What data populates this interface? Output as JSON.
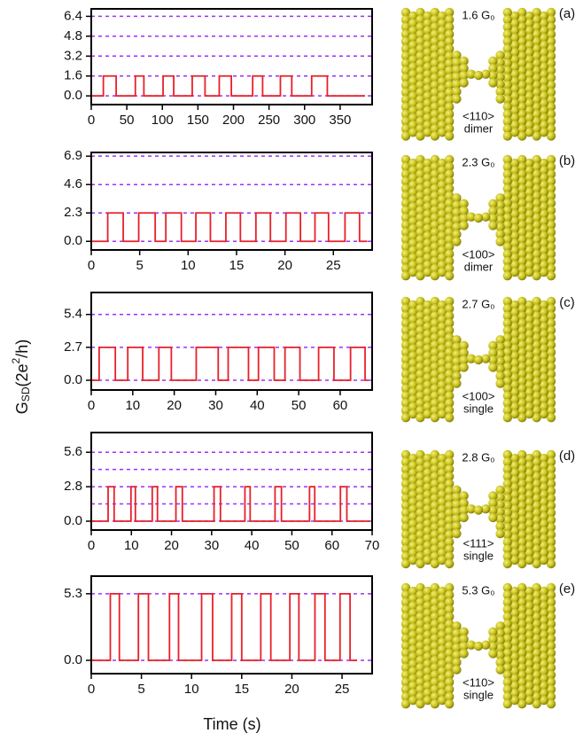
{
  "xlabel": "Time (s)",
  "ylabel": [
    "G",
    "SD",
    "(2e",
    "2",
    "/h)"
  ],
  "chart_data": [
    {
      "type": "line",
      "panel_label": "(a)",
      "conductance_label": "1.6 G₀",
      "structure_label": [
        "<110>",
        "dimer"
      ],
      "color": "#e8202a",
      "grid_color": "#9b30ff",
      "xlim": [
        0,
        395
      ],
      "xticks": [
        0,
        50,
        100,
        150,
        200,
        250,
        300,
        350
      ],
      "ylim": [
        -0.7,
        7.0
      ],
      "yticks": [
        {
          "value": 0,
          "label": "0.0"
        },
        1.6,
        3.2,
        4.8,
        6.4
      ],
      "hlines": [
        0,
        1.6,
        3.2,
        4.8,
        6.4
      ],
      "x": [
        0,
        17,
        17,
        35,
        35,
        62,
        62,
        74,
        74,
        101,
        101,
        116,
        116,
        142,
        142,
        160,
        160,
        180,
        180,
        197,
        197,
        227,
        227,
        241,
        241,
        266,
        266,
        282,
        282,
        310,
        310,
        332,
        332,
        385
      ],
      "values": [
        0,
        0,
        1.6,
        1.6,
        0,
        0,
        1.6,
        1.6,
        0,
        0,
        1.6,
        1.6,
        0,
        0,
        1.6,
        1.6,
        0,
        0,
        1.6,
        1.6,
        0,
        0,
        1.6,
        1.6,
        0,
        0,
        1.6,
        1.6,
        0,
        0,
        1.6,
        1.6,
        0,
        0
      ]
    },
    {
      "type": "line",
      "panel_label": "(b)",
      "conductance_label": "2.3 G₀",
      "structure_label": [
        "<100>",
        "dimer"
      ],
      "color": "#e8202a",
      "grid_color": "#9b30ff",
      "xlim": [
        0,
        29
      ],
      "xticks": [
        0,
        5,
        10,
        15,
        20,
        25
      ],
      "ylim": [
        -0.7,
        7.2
      ],
      "yticks": [
        {
          "value": 0,
          "label": "0.0"
        },
        2.3,
        4.6,
        6.9
      ],
      "hlines": [
        0,
        2.3,
        4.6,
        6.9
      ],
      "x": [
        0,
        1.7,
        1.7,
        3.3,
        3.3,
        4.9,
        4.9,
        6.6,
        6.6,
        7.7,
        7.7,
        9.3,
        9.3,
        10.8,
        10.8,
        12.3,
        12.3,
        13.9,
        13.9,
        15.4,
        15.4,
        17,
        17,
        18.5,
        18.5,
        20.1,
        20.1,
        21.6,
        21.6,
        23.1,
        23.1,
        24.5,
        24.5,
        26.2,
        26.2,
        27.7,
        27.7,
        28.5
      ],
      "values": [
        0,
        0,
        2.3,
        2.3,
        0,
        0,
        2.3,
        2.3,
        0,
        0,
        2.3,
        2.3,
        0,
        0,
        2.3,
        2.3,
        0,
        0,
        2.3,
        2.3,
        0,
        0,
        2.3,
        2.3,
        0,
        0,
        2.3,
        2.3,
        0,
        0,
        2.3,
        2.3,
        0,
        0,
        2.3,
        2.3,
        0,
        0
      ]
    },
    {
      "type": "line",
      "panel_label": "(c)",
      "conductance_label": "2.7 G₀",
      "structure_label": [
        "<100>",
        "single"
      ],
      "color": "#e8202a",
      "grid_color": "#9b30ff",
      "xlim": [
        0,
        67.7
      ],
      "xticks": [
        0,
        10,
        20,
        30,
        40,
        50,
        60
      ],
      "ylim": [
        -0.8,
        7.2
      ],
      "yticks": [
        {
          "value": 0,
          "label": "0.0"
        },
        2.7,
        5.4
      ],
      "hlines": [
        0,
        2.7,
        5.4
      ],
      "x": [
        0,
        1.9,
        1.9,
        5.8,
        5.8,
        8.8,
        8.8,
        12.4,
        12.4,
        16.3,
        16.3,
        19.3,
        19.3,
        25.3,
        25.3,
        30.6,
        30.6,
        33,
        33,
        37.9,
        37.9,
        40.3,
        40.3,
        44.1,
        44.1,
        46.7,
        46.7,
        50.3,
        50.3,
        54.8,
        54.8,
        58.5,
        58.5,
        62.5,
        62.5,
        66,
        66,
        66.8
      ],
      "values": [
        0,
        0,
        2.7,
        2.7,
        0,
        0,
        2.7,
        2.7,
        0,
        0,
        2.7,
        2.7,
        0,
        0,
        2.7,
        2.7,
        0,
        0,
        2.7,
        2.7,
        0,
        0,
        2.7,
        2.7,
        0,
        0,
        2.7,
        2.7,
        0,
        0,
        2.7,
        2.7,
        0,
        0,
        2.7,
        2.7,
        0,
        0
      ]
    },
    {
      "type": "line",
      "panel_label": "(d)",
      "conductance_label": "2.8 G₀",
      "structure_label": [
        "<111>",
        "single"
      ],
      "color": "#e8202a",
      "grid_color": "#9b30ff",
      "xlim": [
        0,
        70
      ],
      "xticks": [
        0,
        10,
        20,
        30,
        40,
        50,
        60,
        70
      ],
      "ylim": [
        -0.72,
        7.2
      ],
      "yticks": [
        {
          "value": 0,
          "label": "0.0"
        },
        2.8,
        5.6
      ],
      "hlines": [
        0,
        1.4,
        2.8,
        4.2,
        5.6
      ],
      "x": [
        0,
        4.2,
        4.2,
        5.7,
        5.7,
        9.9,
        9.9,
        11,
        11,
        15.2,
        15.2,
        16.5,
        16.5,
        21.1,
        21.1,
        22.7,
        22.7,
        30.6,
        30.6,
        32.2,
        32.2,
        38.3,
        38.3,
        39.6,
        39.6,
        45.8,
        45.8,
        47.4,
        47.4,
        54.4,
        54.4,
        55.7,
        55.7,
        62.1,
        62.1,
        63.7,
        63.7,
        69.5
      ],
      "values": [
        0,
        0,
        2.8,
        2.8,
        0,
        0,
        2.8,
        2.8,
        0,
        0,
        2.8,
        2.8,
        0,
        0,
        2.8,
        2.8,
        0,
        0,
        2.8,
        2.8,
        0,
        0,
        2.8,
        2.8,
        0,
        0,
        2.8,
        2.8,
        0,
        0,
        2.8,
        2.8,
        0,
        0,
        2.8,
        2.8,
        0,
        0
      ]
    },
    {
      "type": "line",
      "panel_label": "(e)",
      "conductance_label": "5.3 G₀",
      "structure_label": [
        "<110>",
        "single"
      ],
      "color": "#e8202a",
      "grid_color": "#9b30ff",
      "xlim": [
        0,
        28
      ],
      "xticks": [
        0,
        5,
        10,
        15,
        20,
        25
      ],
      "ylim": [
        -1.06,
        6.7
      ],
      "yticks": [
        {
          "value": 0,
          "label": "0.0"
        },
        5.3
      ],
      "hlines": [
        0,
        5.3
      ],
      "x": [
        0,
        1.9,
        1.9,
        2.8,
        2.8,
        4.7,
        4.7,
        5.7,
        5.7,
        7.8,
        7.8,
        8.7,
        8.7,
        11,
        11,
        12.1,
        12.1,
        14,
        14,
        15,
        15,
        16.9,
        16.9,
        17.9,
        17.9,
        19.8,
        19.8,
        20.7,
        20.7,
        22.3,
        22.3,
        23.3,
        23.3,
        24.8,
        24.8,
        25.8,
        25.8,
        26.5
      ],
      "values": [
        0,
        0,
        5.3,
        5.3,
        0,
        0,
        5.3,
        5.3,
        0,
        0,
        5.3,
        5.3,
        0,
        0,
        5.3,
        5.3,
        0,
        0,
        5.3,
        5.3,
        0,
        0,
        5.3,
        5.3,
        0,
        0,
        5.3,
        5.3,
        0,
        0,
        5.3,
        5.3,
        0,
        0,
        5.3,
        5.3,
        0,
        0
      ]
    }
  ]
}
